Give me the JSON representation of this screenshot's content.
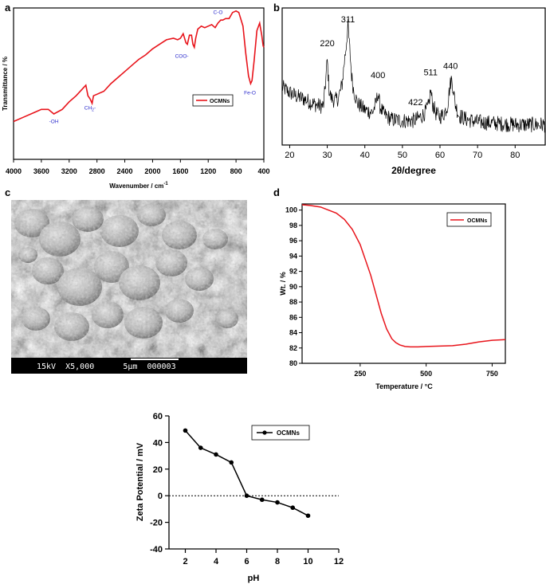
{
  "panel_labels": {
    "a": "a",
    "b": "b",
    "c": "c",
    "d": "d"
  },
  "sem": {
    "caption": "15kV  X5,000      5µm  000003"
  },
  "colors": {
    "red": "#e8141b",
    "black": "#000000",
    "annotation_blue": "#2a2acc"
  },
  "chart_data": [
    {
      "id": "ftir",
      "type": "line",
      "title": "",
      "xlabel": "Wavenumber / cm",
      "xlabel_sup": "-1",
      "ylabel": "Transmittance / %",
      "xlim": [
        4000,
        400
      ],
      "x_reversed": true,
      "ylim": [
        0,
        100
      ],
      "x_ticks": [
        4000,
        3600,
        3200,
        2800,
        2400,
        2000,
        1600,
        1200,
        800,
        400
      ],
      "legend": {
        "position": "right-middle",
        "entries": [
          "OCMNs"
        ]
      },
      "series": [
        {
          "name": "OCMNs",
          "color": "#e8141b",
          "x": [
            4000,
            3850,
            3700,
            3600,
            3500,
            3420,
            3300,
            3200,
            3100,
            3000,
            2960,
            2930,
            2900,
            2870,
            2850,
            2800,
            2700,
            2600,
            2500,
            2400,
            2300,
            2200,
            2100,
            2000,
            1900,
            1800,
            1700,
            1640,
            1600,
            1560,
            1520,
            1500,
            1470,
            1440,
            1420,
            1400,
            1380,
            1350,
            1300,
            1250,
            1200,
            1150,
            1100,
            1060,
            1020,
            990,
            950,
            900,
            850,
            800,
            760,
            700,
            660,
            620,
            590,
            570,
            540,
            500,
            460,
            430,
            410,
            400
          ],
          "y": [
            25,
            28,
            31,
            33,
            33,
            30,
            33,
            38,
            42,
            47,
            49,
            42,
            40,
            37,
            42,
            43,
            45,
            50,
            54,
            58,
            62,
            66,
            69,
            73,
            76,
            79,
            80,
            79,
            80,
            83,
            77,
            76,
            82,
            82,
            76,
            74,
            80,
            86,
            88,
            87,
            88,
            89,
            87,
            90,
            92,
            92,
            93,
            93,
            97,
            98,
            97,
            88,
            70,
            55,
            50,
            52,
            65,
            85,
            90,
            82,
            75,
            74
          ]
        }
      ],
      "annotations": [
        {
          "text": "-OH",
          "x": 3420,
          "y": 24
        },
        {
          "text": "CH",
          "sub": "2",
          "suffix": "-",
          "x": 2900,
          "y": 33
        },
        {
          "text": "COO-",
          "x": 1580,
          "y": 67
        },
        {
          "text": "C-O",
          "x": 1060,
          "y": 96
        },
        {
          "text": "Fe-O",
          "x": 600,
          "y": 43
        }
      ]
    },
    {
      "id": "xrd",
      "type": "line",
      "title": "",
      "xlabel": "2θ/degree",
      "ylabel": "",
      "xlim": [
        18,
        88
      ],
      "ylim": [
        0,
        100
      ],
      "x_ticks": [
        20,
        30,
        40,
        50,
        60,
        70,
        80
      ],
      "series": [
        {
          "name": "",
          "color": "#000000",
          "x": [
            18,
            20,
            22,
            24,
            26,
            28,
            29,
            29.5,
            30,
            30.5,
            31,
            32,
            33,
            34,
            34.5,
            35,
            35.5,
            36,
            36.5,
            37,
            38,
            40,
            42,
            43,
            43.5,
            44,
            45,
            47,
            50,
            53,
            55,
            56,
            57,
            57.5,
            58,
            59,
            60,
            61,
            62,
            62.5,
            63,
            63.5,
            64,
            65,
            67,
            70,
            75,
            80,
            85,
            88
          ],
          "y": [
            42,
            38,
            35,
            33,
            30,
            28,
            28,
            44,
            62,
            40,
            34,
            32,
            34,
            45,
            60,
            72,
            88,
            70,
            50,
            40,
            30,
            25,
            23,
            30,
            38,
            28,
            22,
            18,
            17,
            17,
            20,
            23,
            28,
            40,
            30,
            22,
            20,
            22,
            28,
            40,
            48,
            42,
            30,
            21,
            18,
            16,
            15,
            14,
            14,
            14
          ],
          "noise": 6
        }
      ],
      "peak_labels": [
        {
          "text": "220",
          "x": 30
        },
        {
          "text": "311",
          "x": 35.5
        },
        {
          "text": "400",
          "x": 43.5
        },
        {
          "text": "422",
          "x": 53.5
        },
        {
          "text": "511",
          "x": 57.5
        },
        {
          "text": "440",
          "x": 62.8
        }
      ]
    },
    {
      "id": "tga",
      "type": "line",
      "title": "",
      "xlabel": "Temperature / °C",
      "ylabel": "Wt. / %",
      "xlim": [
        30,
        800
      ],
      "ylim": [
        80,
        100.8
      ],
      "x_ticks": [
        250,
        500,
        750
      ],
      "y_ticks": [
        80,
        82,
        84,
        86,
        88,
        90,
        92,
        94,
        96,
        98,
        100
      ],
      "legend": {
        "position": "top-right",
        "entries": [
          "OCMNs"
        ]
      },
      "series": [
        {
          "name": "OCMNs",
          "color": "#e8141b",
          "x": [
            30,
            60,
            100,
            130,
            160,
            190,
            220,
            250,
            270,
            290,
            310,
            330,
            350,
            370,
            385,
            400,
            420,
            440,
            470,
            500,
            550,
            600,
            650,
            700,
            750,
            800
          ],
          "y": [
            100.7,
            100.6,
            100.4,
            100.0,
            99.6,
            98.8,
            97.5,
            95.5,
            93.5,
            91.5,
            89.0,
            86.5,
            84.5,
            83.2,
            82.7,
            82.4,
            82.2,
            82.15,
            82.15,
            82.2,
            82.25,
            82.3,
            82.5,
            82.8,
            83.0,
            83.1
          ]
        }
      ]
    },
    {
      "id": "zeta",
      "type": "line",
      "title": "",
      "xlabel": "pH",
      "ylabel": "Zeta Potential / mV",
      "xlim": [
        0,
        12
      ],
      "ylim": [
        -40,
        60
      ],
      "x_ticks": [
        2,
        4,
        6,
        8,
        10,
        12
      ],
      "y_ticks": [
        -40,
        -20,
        0,
        20,
        40,
        60
      ],
      "zero_line": true,
      "legend": {
        "position": "top-right",
        "entries": [
          "OCMNs"
        ]
      },
      "series": [
        {
          "name": "OCMNs",
          "color": "#000000",
          "x": [
            2,
            3,
            4,
            5,
            6,
            7,
            8,
            9,
            10
          ],
          "y": [
            49,
            36,
            31,
            25,
            0,
            -3,
            -5,
            -9,
            -15
          ]
        }
      ]
    }
  ]
}
